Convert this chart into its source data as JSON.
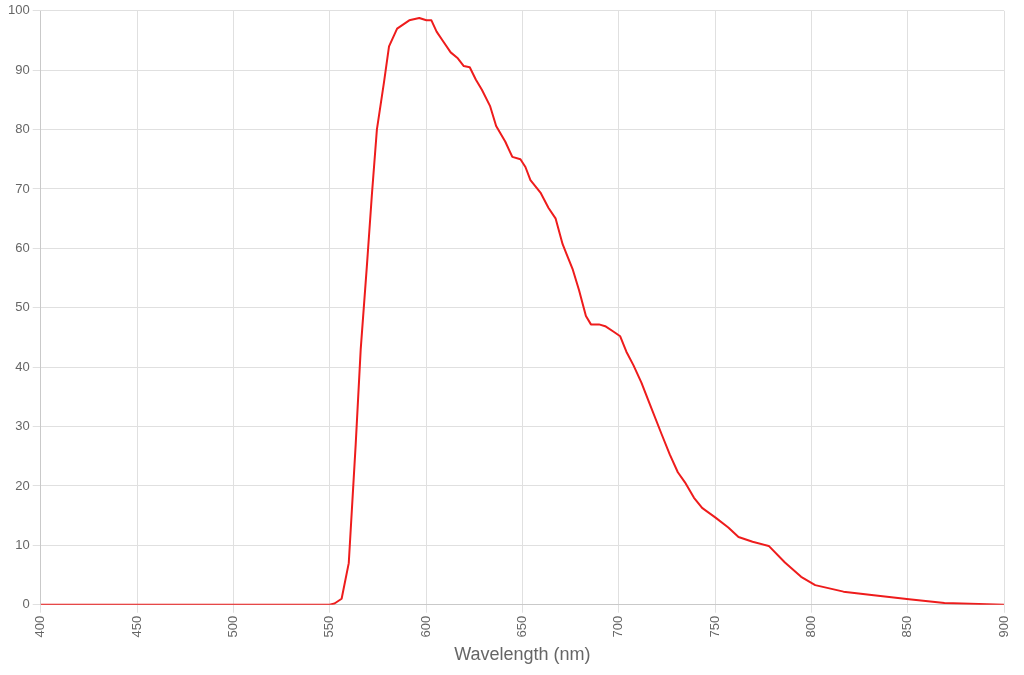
{
  "chart_data": {
    "type": "line",
    "xlabel": "Wavelength (nm)",
    "xlim": [
      400,
      900
    ],
    "xticks": [
      400,
      450,
      500,
      550,
      600,
      650,
      700,
      750,
      800,
      850,
      900
    ],
    "ylim": [
      0,
      100
    ],
    "yticks": [
      0,
      10,
      20,
      30,
      40,
      50,
      60,
      70,
      80,
      90,
      100
    ],
    "grid": true,
    "legend": false,
    "marker": "none",
    "line_style": "solid",
    "series": [
      {
        "color": "#ee1c1c",
        "x": [
          400,
          550,
          552.5,
          556.2,
          559.9,
          563.5,
          566.1,
          569.3,
          571.9,
          574.5,
          578.2,
          580.8,
          585,
          591.3,
          596.5,
          600.2,
          602.8,
          605.5,
          608.6,
          612.8,
          616.5,
          619.6,
          622.7,
          625.9,
          629,
          633.2,
          636.4,
          641.1,
          644.8,
          649,
          651.6,
          654.2,
          659.4,
          663.6,
          667.3,
          670.9,
          676.2,
          679.4,
          683,
          685.6,
          689.8,
          693,
          697.2,
          700.8,
          704,
          707.7,
          711.8,
          716,
          722.3,
          726.5,
          730.7,
          734.4,
          739.1,
          743.3,
          750.1,
          756.9,
          762.2,
          769.5,
          777.9,
          786.3,
          794.7,
          802,
          816.7,
          832.4,
          850.7,
          869.1,
          900
        ],
        "values": [
          0,
          0,
          0.2,
          1,
          7,
          27,
          43,
          57,
          69,
          80,
          88,
          94,
          97,
          98.4,
          98.8,
          98.4,
          98.4,
          96.5,
          95,
          93,
          92,
          90.7,
          90.5,
          88.4,
          86.7,
          84,
          80.6,
          78,
          75.4,
          75,
          73.7,
          71.5,
          69.4,
          66.8,
          65,
          60.7,
          56.4,
          53,
          48.6,
          47.2,
          47.2,
          46.9,
          46,
          45.2,
          42.6,
          40.3,
          37.4,
          33.9,
          28.7,
          25.3,
          22.3,
          20.6,
          18,
          16.3,
          14.7,
          13,
          11.4,
          10.6,
          9.9,
          7.1,
          4.7,
          3.3,
          2.2,
          1.6,
          0.9,
          0.3,
          0
        ]
      }
    ]
  }
}
